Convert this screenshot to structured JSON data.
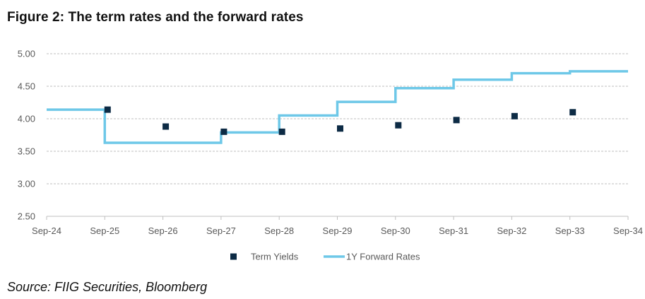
{
  "header": {
    "title": "Figure 2: The term rates and the forward rates"
  },
  "footer": {
    "source": "Source: FIIG Securities, Bloomberg"
  },
  "colors": {
    "term_yields": "#0d2b45",
    "forward_rates": "#6ec8e8",
    "gridline": "#bfbfbf",
    "axis": "#bfbfbf",
    "tick_text": "#595959"
  },
  "chart_data": {
    "type": "scatter",
    "title": "Figure 2: The term rates and the forward rates",
    "xlabel": "",
    "ylabel": "",
    "x_categories": [
      "Sep-24",
      "Sep-25",
      "Sep-26",
      "Sep-27",
      "Sep-28",
      "Sep-29",
      "Sep-30",
      "Sep-31",
      "Sep-32",
      "Sep-33",
      "Sep-34"
    ],
    "ylim": [
      2.5,
      5.0
    ],
    "y_ticks": [
      "5.00",
      "4.50",
      "4.00",
      "3.50",
      "3.00",
      "2.50"
    ],
    "grid": true,
    "legend_position": "bottom",
    "series": [
      {
        "name": "Term Yields",
        "type": "scatter",
        "points": [
          {
            "x": "Sep-25",
            "y": 4.14
          },
          {
            "x": "Sep-26",
            "y": 3.88
          },
          {
            "x": "Sep-27",
            "y": 3.8
          },
          {
            "x": "Sep-28",
            "y": 3.8
          },
          {
            "x": "Sep-29",
            "y": 3.85
          },
          {
            "x": "Sep-30",
            "y": 3.9
          },
          {
            "x": "Sep-31",
            "y": 3.98
          },
          {
            "x": "Sep-32",
            "y": 4.04
          },
          {
            "x": "Sep-33",
            "y": 4.1
          }
        ]
      },
      {
        "name": "1Y Forward Rates",
        "type": "step",
        "segments": [
          {
            "from": "Sep-24",
            "to": "Sep-25",
            "y": 4.14
          },
          {
            "from": "Sep-25",
            "to": "Sep-27",
            "y": 3.63
          },
          {
            "from": "Sep-27",
            "to": "Sep-28",
            "y": 3.79
          },
          {
            "from": "Sep-28",
            "to": "Sep-29",
            "y": 4.05
          },
          {
            "from": "Sep-29",
            "to": "Sep-30",
            "y": 4.26
          },
          {
            "from": "Sep-30",
            "to": "Sep-31",
            "y": 4.47
          },
          {
            "from": "Sep-31",
            "to": "Sep-32",
            "y": 4.6
          },
          {
            "from": "Sep-32",
            "to": "Sep-33",
            "y": 4.7
          },
          {
            "from": "Sep-33",
            "to": "Sep-34",
            "y": 4.73
          }
        ]
      }
    ]
  }
}
